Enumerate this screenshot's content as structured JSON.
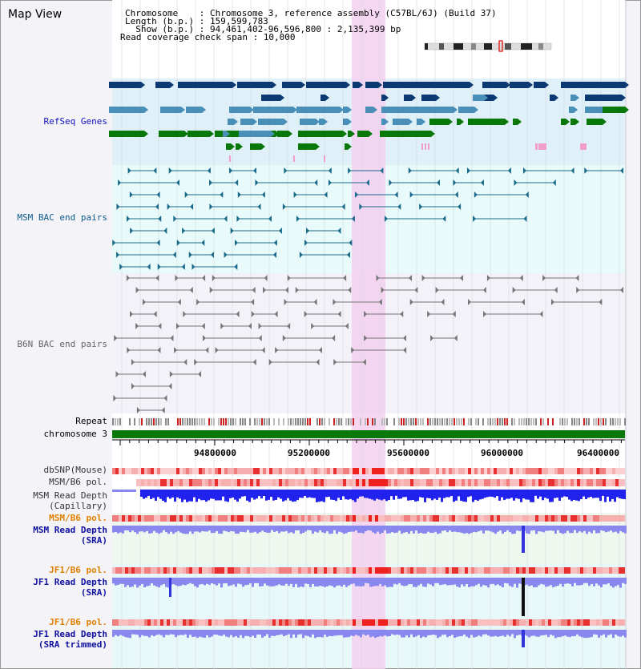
{
  "view_title": "Map View",
  "header": {
    "line1": "Chromosome    : Chromosome 3, reference assembly (C57BL/6J) (Build 37)",
    "line2": "Length (b.p.) : 159,599,783",
    "line3": "  Show (b.p.) : 94,461,402-96,596,800 : 2,135,399 bp",
    "line4": "Read coverage check span : 10,000"
  },
  "track_labels": {
    "refseq": "RefSeq Genes",
    "msm_bac": "MSM BAC end pairs",
    "b6n_bac": "B6N BAC end pairs",
    "repeat": "Repeat",
    "chromosome": "chromosome 3",
    "dbsnp": "dbSNP(Mouse)",
    "msm_b6_pol_1": "MSM/B6 pol.",
    "msm_depth_cap_1": "MSM Read Depth",
    "msm_depth_cap_2": "(Capillary)",
    "msm_b6_pol_2": "MSM/B6 pol.",
    "msm_depth_sra_1": "MSM Read Depth",
    "msm_depth_sra_2": "(SRA)",
    "jf1_b6_pol_1": "JF1/B6 pol.",
    "jf1_depth_sra_1": "JF1 Read Depth",
    "jf1_depth_sra_2": "(SRA)",
    "jf1_b6_pol_2": "JF1/B6 pol.",
    "jf1_depth_trim_1": "JF1 Read Depth",
    "jf1_depth_trim_2": "(SRA trimmed)"
  },
  "axis_ticks": [
    "94800000",
    "95200000",
    "95600000",
    "96000000",
    "96400000"
  ],
  "colors": {
    "refseq_dark": "#0b3a73",
    "refseq_mid": "#4a8fb8",
    "refseq_green": "#087808",
    "refseq_bg": "#dff0f8",
    "highlight": "#f5d0f0",
    "chrom_bar": "#087808",
    "msm_label": "#0b5a8c",
    "b6n_label": "#666666",
    "depth_blue": "#2222ee",
    "depth_lavender": "#8888ee",
    "pol_red": "#ee3030",
    "orange_label": "#e08000",
    "blue_label": "#1010a0"
  }
}
